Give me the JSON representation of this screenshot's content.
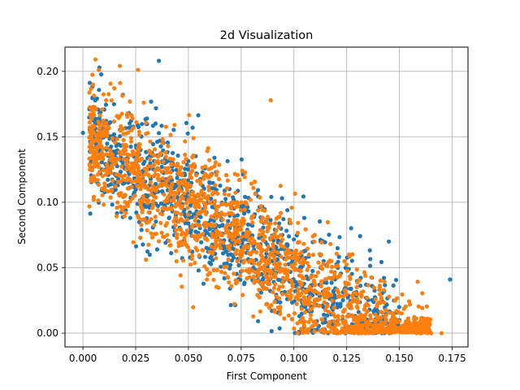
{
  "chart_data": {
    "type": "scatter",
    "title": "2d Visualization",
    "xlabel": "First Component",
    "ylabel": "Second Component",
    "xlim": [
      -0.0085,
      0.1825
    ],
    "ylim": [
      -0.0105,
      0.2185
    ],
    "xticks": [
      0.0,
      0.025,
      0.05,
      0.075,
      0.1,
      0.125,
      0.15,
      0.175
    ],
    "xtick_labels": [
      "0.000",
      "0.025",
      "0.050",
      "0.075",
      "0.100",
      "0.125",
      "0.150",
      "0.175"
    ],
    "yticks": [
      0.0,
      0.05,
      0.1,
      0.15,
      0.2
    ],
    "ytick_labels": [
      "0.00",
      "0.05",
      "0.10",
      "0.15",
      "0.20"
    ],
    "grid": true,
    "legend": false,
    "series": [
      {
        "color": "#1f77b4",
        "outliers": [
          [
            0.036,
            0.208
          ],
          [
            0.0,
            0.153
          ],
          [
            0.174,
            0.041
          ],
          [
            0.145,
            0.07
          ],
          [
            0.052,
            0.157
          ],
          [
            0.021,
            0.167
          ],
          [
            0.03,
            0.16
          ],
          [
            0.15,
            0.01
          ]
        ],
        "trend": {
          "x_range": [
            0.003,
            0.15
          ],
          "intercept": 0.152,
          "slope": -1.08,
          "spread": 0.022,
          "count": 1100
        }
      },
      {
        "color": "#ff7f0e",
        "outliers": [
          [
            0.089,
            0.178
          ],
          [
            0.018,
            0.158
          ],
          [
            0.17,
            0.0
          ],
          [
            0.165,
            0.0
          ],
          [
            0.16,
            0.0
          ],
          [
            0.155,
            0.022
          ],
          [
            0.004,
            0.15
          ],
          [
            0.04,
            0.075
          ]
        ],
        "trend": {
          "x_range": [
            0.003,
            0.165
          ],
          "intercept": 0.15,
          "slope": -1.06,
          "spread": 0.022,
          "count": 1700
        }
      }
    ]
  }
}
